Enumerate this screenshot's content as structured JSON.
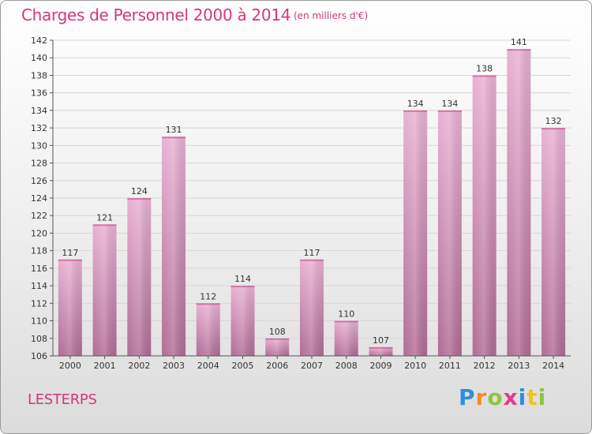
{
  "title": "Charges de Personnel 2000 à 2014",
  "subtitle": "(en milliers d'€)",
  "commune": "LESTERPS",
  "logo": {
    "letters": [
      "P",
      "r",
      "o",
      "x",
      "i",
      "t",
      "i"
    ]
  },
  "colors": {
    "accent": "#d5357f",
    "bar_light": "#e7aed0",
    "bar_dark": "#b56f97"
  },
  "chart_data": {
    "type": "bar",
    "categories": [
      "2000",
      "2001",
      "2002",
      "2003",
      "2004",
      "2005",
      "2006",
      "2007",
      "2008",
      "2009",
      "2010",
      "2011",
      "2012",
      "2013",
      "2014"
    ],
    "values": [
      117,
      121,
      124,
      131,
      112,
      114,
      108,
      117,
      110,
      107,
      134,
      134,
      138,
      141,
      132
    ],
    "ylim": [
      106,
      142
    ],
    "ytick_step": 2,
    "grid": true,
    "data_labels": true
  }
}
